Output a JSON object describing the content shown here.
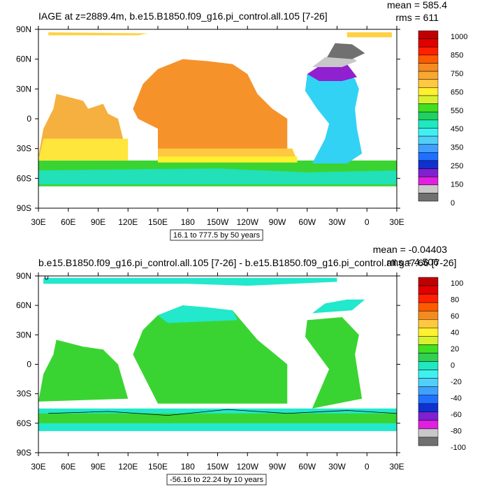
{
  "chart_data": [
    {
      "type": "heatmap",
      "title": "IAGE at z=2889.4m, b.e15.B1850.f09_g16.pi_control.all.105 [7-26]",
      "stats": {
        "mean": "mean = 585.4",
        "rms": "rms = 611"
      },
      "x_ticks": [
        "30E",
        "60E",
        "90E",
        "120E",
        "150E",
        "180",
        "150W",
        "120W",
        "90W",
        "60W",
        "30W",
        "0",
        "30E"
      ],
      "y_ticks": [
        "90N",
        "60N",
        "30N",
        "0",
        "30S",
        "60S",
        "90S"
      ],
      "xlim": [
        30,
        390
      ],
      "ylim": [
        -90,
        90
      ],
      "colorbar_labels": [
        "1000",
        "850",
        "750",
        "650",
        "550",
        "450",
        "350",
        "250",
        "150",
        "0"
      ],
      "colorbar_colors": [
        "#c00000",
        "#e00000",
        "#ff2000",
        "#ff5a00",
        "#f58a20",
        "#f8a830",
        "#ffc840",
        "#fff030",
        "#d8f030",
        "#40e020",
        "#20d060",
        "#20e8c0",
        "#40f0f0",
        "#50d0f8",
        "#40a0ff",
        "#2070ff",
        "#1030d0",
        "#8020d0",
        "#e020e0",
        "#c8c8c8",
        "#707070"
      ],
      "info": "16.1 to 777.5 by 50 years",
      "regions": [
        {
          "name": "pacific-north",
          "value": 800,
          "color": "#f5932a"
        },
        {
          "name": "southern-ocean",
          "value": 560,
          "color": "#3ad432"
        },
        {
          "name": "southern-ocean-deep",
          "value": 500,
          "color": "#22e0b8"
        },
        {
          "name": "atlantic",
          "value": 350,
          "color": "#32d2f5"
        },
        {
          "name": "north-atlantic",
          "value": 200,
          "color": "#9020d0"
        },
        {
          "name": "nordic-seas",
          "value": 50,
          "color": "#707070"
        },
        {
          "name": "arctic",
          "value": 600,
          "color": "#ffd040"
        }
      ]
    },
    {
      "type": "heatmap",
      "title": "b.e15.B1850.f09_g16.pi_control.all.105 [7-26] - b.e15.B1850.f09_g16.pi_control.all.ga7.66 [7-26]",
      "stats": {
        "mean": "mean = -0.04403",
        "rms": "rms = 4.506"
      },
      "x_ticks": [
        "30E",
        "60E",
        "90E",
        "120E",
        "150E",
        "180",
        "150W",
        "120W",
        "90W",
        "60W",
        "30W",
        "0",
        "30E"
      ],
      "y_ticks": [
        "90N",
        "60N",
        "30N",
        "0",
        "30S",
        "60S",
        "90S"
      ],
      "xlim": [
        30,
        390
      ],
      "ylim": [
        -90,
        90
      ],
      "colorbar_labels": [
        "100",
        "80",
        "60",
        "40",
        "20",
        "0",
        "-20",
        "-40",
        "-60",
        "-80",
        "-100"
      ],
      "colorbar_colors": [
        "#c00000",
        "#e00000",
        "#ff2000",
        "#ff5a00",
        "#f58a20",
        "#ffc840",
        "#fff030",
        "#d8f030",
        "#40e020",
        "#30d050",
        "#20e8c0",
        "#40f0f0",
        "#50d0f8",
        "#40a0ff",
        "#2070ff",
        "#1030d0",
        "#8020d0",
        "#e020e0",
        "#c8c8c8",
        "#707070"
      ],
      "info": "-56.16 to 22.24 by 10 years",
      "contour_label": "0",
      "regions": [
        {
          "name": "diff-ocean-green",
          "value": 5,
          "color": "#3ad432"
        },
        {
          "name": "diff-ocean-cyan",
          "value": -5,
          "color": "#22e8cc"
        }
      ]
    }
  ]
}
